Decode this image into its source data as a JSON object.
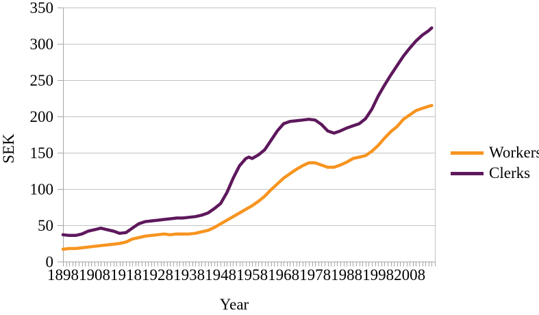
{
  "figure": {
    "title": "",
    "background": "#ffffff"
  },
  "colors": {
    "gridline": "#c3c3c3",
    "axis": "#a6a6a6",
    "tick_text": "#000000",
    "workers": "#f79420",
    "clerks": "#5e185c"
  },
  "chart_data": {
    "type": "line",
    "title": "",
    "xlabel": "Year",
    "ylabel": "SEK",
    "x_range": [
      1898,
      2016
    ],
    "ylim": [
      0,
      350
    ],
    "yticks": [
      0,
      50,
      100,
      150,
      200,
      250,
      300,
      350
    ],
    "xticks": [
      1898,
      1908,
      1918,
      1928,
      1938,
      1948,
      1958,
      1968,
      1978,
      1988,
      1998,
      2008
    ],
    "minor_xtick_interval_years": 1,
    "grid": "horizontal",
    "legend_position": "right",
    "series": [
      {
        "name": "Workers",
        "color": "#f79420",
        "points": [
          [
            1898,
            17
          ],
          [
            1900,
            18
          ],
          [
            1902,
            18
          ],
          [
            1904,
            19
          ],
          [
            1906,
            20
          ],
          [
            1908,
            21
          ],
          [
            1910,
            22
          ],
          [
            1912,
            23
          ],
          [
            1914,
            24
          ],
          [
            1916,
            25
          ],
          [
            1918,
            27
          ],
          [
            1920,
            31
          ],
          [
            1922,
            33
          ],
          [
            1924,
            35
          ],
          [
            1926,
            36
          ],
          [
            1928,
            37
          ],
          [
            1930,
            38
          ],
          [
            1932,
            37
          ],
          [
            1934,
            38
          ],
          [
            1936,
            38
          ],
          [
            1938,
            38
          ],
          [
            1940,
            39
          ],
          [
            1942,
            41
          ],
          [
            1944,
            43
          ],
          [
            1946,
            47
          ],
          [
            1948,
            52
          ],
          [
            1950,
            57
          ],
          [
            1952,
            62
          ],
          [
            1954,
            67
          ],
          [
            1956,
            72
          ],
          [
            1958,
            77
          ],
          [
            1960,
            83
          ],
          [
            1962,
            90
          ],
          [
            1964,
            99
          ],
          [
            1966,
            107
          ],
          [
            1968,
            115
          ],
          [
            1970,
            121
          ],
          [
            1972,
            127
          ],
          [
            1974,
            132
          ],
          [
            1976,
            136
          ],
          [
            1978,
            136
          ],
          [
            1980,
            133
          ],
          [
            1982,
            130
          ],
          [
            1984,
            130
          ],
          [
            1986,
            133
          ],
          [
            1988,
            137
          ],
          [
            1990,
            142
          ],
          [
            1992,
            144
          ],
          [
            1994,
            146
          ],
          [
            1996,
            152
          ],
          [
            1998,
            160
          ],
          [
            2000,
            170
          ],
          [
            2002,
            179
          ],
          [
            2004,
            186
          ],
          [
            2006,
            196
          ],
          [
            2008,
            202
          ],
          [
            2010,
            208
          ],
          [
            2012,
            211
          ],
          [
            2014,
            214
          ],
          [
            2015,
            215
          ]
        ]
      },
      {
        "name": "Clerks",
        "color": "#5e185c",
        "points": [
          [
            1898,
            37
          ],
          [
            1900,
            36
          ],
          [
            1902,
            36
          ],
          [
            1904,
            38
          ],
          [
            1906,
            42
          ],
          [
            1908,
            44
          ],
          [
            1910,
            46
          ],
          [
            1912,
            44
          ],
          [
            1914,
            42
          ],
          [
            1916,
            39
          ],
          [
            1918,
            40
          ],
          [
            1920,
            46
          ],
          [
            1922,
            52
          ],
          [
            1924,
            55
          ],
          [
            1926,
            56
          ],
          [
            1928,
            57
          ],
          [
            1930,
            58
          ],
          [
            1932,
            59
          ],
          [
            1934,
            60
          ],
          [
            1936,
            60
          ],
          [
            1938,
            61
          ],
          [
            1940,
            62
          ],
          [
            1942,
            64
          ],
          [
            1944,
            67
          ],
          [
            1946,
            73
          ],
          [
            1948,
            80
          ],
          [
            1950,
            95
          ],
          [
            1952,
            115
          ],
          [
            1954,
            132
          ],
          [
            1956,
            142
          ],
          [
            1957,
            144
          ],
          [
            1958,
            142
          ],
          [
            1960,
            147
          ],
          [
            1962,
            154
          ],
          [
            1964,
            167
          ],
          [
            1966,
            180
          ],
          [
            1968,
            190
          ],
          [
            1970,
            193
          ],
          [
            1972,
            194
          ],
          [
            1974,
            195
          ],
          [
            1976,
            196
          ],
          [
            1978,
            195
          ],
          [
            1980,
            189
          ],
          [
            1982,
            180
          ],
          [
            1984,
            177
          ],
          [
            1986,
            180
          ],
          [
            1988,
            184
          ],
          [
            1990,
            187
          ],
          [
            1992,
            190
          ],
          [
            1994,
            197
          ],
          [
            1996,
            210
          ],
          [
            1998,
            228
          ],
          [
            2000,
            243
          ],
          [
            2002,
            257
          ],
          [
            2004,
            270
          ],
          [
            2006,
            283
          ],
          [
            2008,
            294
          ],
          [
            2010,
            304
          ],
          [
            2012,
            312
          ],
          [
            2014,
            318
          ],
          [
            2015,
            322
          ]
        ]
      }
    ]
  },
  "legend": {
    "items": [
      {
        "label": "Workers"
      },
      {
        "label": "Clerks"
      }
    ]
  }
}
